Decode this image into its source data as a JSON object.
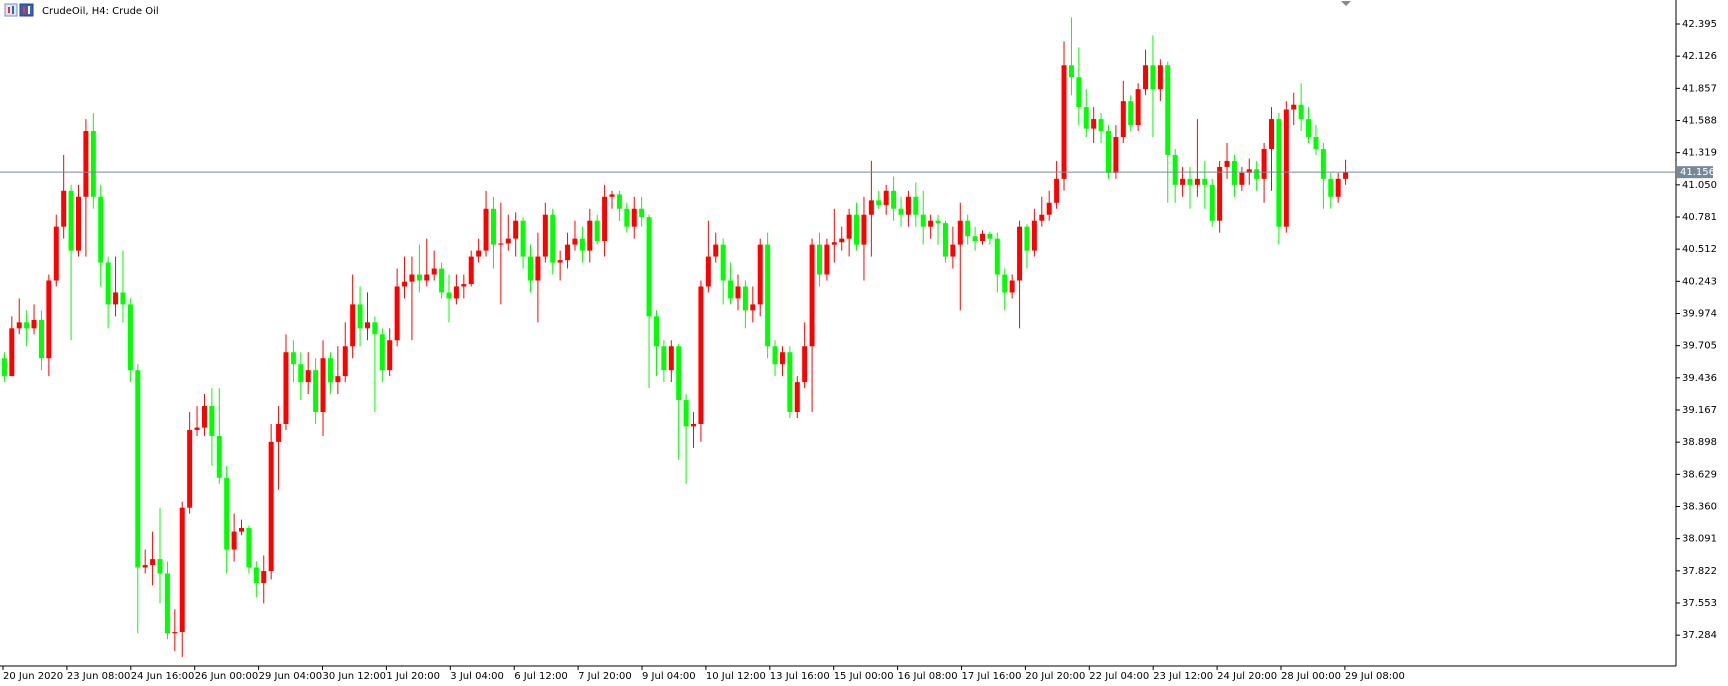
{
  "chart_data": {
    "type": "candlestick",
    "title": "CrudeOil, H4:  Crude Oil",
    "bull_color": "#ff0000",
    "bear_color": "#00ff00",
    "price_line_color": "#778899",
    "last_price": 41.156,
    "ylim": [
      37.026,
      42.579
    ],
    "yticks": [
      42.395,
      42.126,
      41.857,
      41.588,
      41.319,
      {
        "value": 41.05,
        "label": "41.050"
      },
      40.781,
      40.512,
      40.243,
      39.974,
      39.705,
      39.436,
      39.167,
      38.898,
      38.629,
      {
        "value": 38.36,
        "label": "38.360"
      },
      38.091,
      37.822,
      37.553,
      37.284
    ],
    "xlabels": [
      "20 Jun 2020",
      "23 Jun 08:00",
      "24 Jun 16:00",
      "26 Jun 00:00",
      "29 Jun 04:00",
      "30 Jun 12:00",
      "1 Jul 20:00",
      "3 Jul 04:00",
      "6 Jul 12:00",
      "7 Jul 20:00",
      "9 Jul 04:00",
      "10 Jul 12:00",
      "13 Jul 16:00",
      "15 Jul 00:00",
      "16 Jul 08:00",
      "17 Jul 16:00",
      "20 Jul 20:00",
      "22 Jul 04:00",
      "23 Jul 12:00",
      "24 Jul 20:00",
      "28 Jul 00:00",
      "29 Jul 08:00"
    ],
    "ohlc": [
      [
        39.6,
        39.65,
        39.4,
        39.45
      ],
      [
        39.45,
        39.95,
        39.45,
        39.85
      ],
      [
        39.85,
        40.1,
        39.8,
        39.9
      ],
      [
        39.9,
        40.0,
        39.7,
        39.85
      ],
      [
        39.85,
        40.05,
        39.8,
        39.92
      ],
      [
        39.92,
        40.0,
        39.5,
        39.6
      ],
      [
        39.6,
        40.3,
        39.45,
        40.25
      ],
      [
        40.25,
        40.8,
        40.2,
        40.7
      ],
      [
        40.7,
        41.3,
        40.6,
        41.0
      ],
      [
        41.0,
        41.05,
        39.75,
        40.5
      ],
      [
        40.5,
        41.05,
        40.45,
        40.95
      ],
      [
        40.95,
        41.6,
        40.45,
        41.5
      ],
      [
        41.5,
        41.65,
        40.85,
        40.95
      ],
      [
        40.95,
        41.05,
        40.2,
        40.4
      ],
      [
        40.4,
        40.45,
        39.85,
        40.05
      ],
      [
        40.05,
        40.45,
        39.95,
        40.15
      ],
      [
        40.15,
        40.5,
        39.9,
        40.05
      ],
      [
        40.05,
        40.1,
        39.4,
        39.5
      ],
      [
        39.5,
        39.55,
        37.3,
        37.85
      ],
      [
        37.85,
        38.0,
        37.8,
        37.87
      ],
      [
        37.87,
        38.15,
        37.7,
        37.92
      ],
      [
        37.92,
        38.35,
        37.55,
        37.8
      ],
      [
        37.8,
        37.9,
        37.25,
        37.3
      ],
      [
        37.3,
        37.5,
        37.15,
        37.31
      ],
      [
        37.31,
        38.4,
        37.1,
        38.35
      ],
      [
        38.35,
        39.15,
        38.3,
        39.0
      ],
      [
        39.0,
        39.2,
        38.95,
        39.02
      ],
      [
        39.02,
        39.3,
        38.95,
        39.2
      ],
      [
        39.2,
        39.35,
        38.7,
        38.95
      ],
      [
        38.95,
        39.35,
        38.55,
        38.6
      ],
      [
        38.6,
        38.7,
        37.8,
        38.0
      ],
      [
        38.0,
        38.3,
        37.9,
        38.15
      ],
      [
        38.15,
        38.25,
        38.12,
        38.18
      ],
      [
        38.18,
        38.2,
        37.8,
        37.85
      ],
      [
        37.85,
        37.9,
        37.6,
        37.72
      ],
      [
        37.72,
        37.95,
        37.55,
        37.82
      ],
      [
        37.82,
        39.05,
        37.75,
        38.9
      ],
      [
        38.9,
        39.2,
        38.5,
        39.05
      ],
      [
        39.05,
        39.8,
        39.0,
        39.65
      ],
      [
        39.65,
        39.75,
        39.4,
        39.55
      ],
      [
        39.55,
        39.65,
        39.25,
        39.4
      ],
      [
        39.4,
        39.65,
        39.3,
        39.5
      ],
      [
        39.5,
        39.6,
        39.05,
        39.15
      ],
      [
        39.15,
        39.75,
        38.95,
        39.6
      ],
      [
        39.6,
        39.65,
        39.3,
        39.4
      ],
      [
        39.4,
        39.7,
        39.3,
        39.45
      ],
      [
        39.45,
        39.9,
        39.4,
        39.7
      ],
      [
        39.7,
        40.3,
        39.6,
        40.05
      ],
      [
        40.05,
        40.2,
        39.7,
        39.85
      ],
      [
        39.85,
        40.15,
        39.75,
        39.9
      ],
      [
        39.9,
        39.95,
        39.15,
        39.8
      ],
      [
        39.8,
        39.85,
        39.4,
        39.5
      ],
      [
        39.5,
        39.85,
        39.45,
        39.75
      ],
      [
        39.75,
        40.35,
        39.7,
        40.2
      ],
      [
        40.2,
        40.45,
        40.1,
        40.24
      ],
      [
        40.24,
        40.45,
        39.75,
        40.3
      ],
      [
        40.3,
        40.55,
        40.15,
        40.25
      ],
      [
        40.25,
        40.6,
        40.2,
        40.3
      ],
      [
        40.3,
        40.5,
        40.25,
        40.35
      ],
      [
        40.35,
        40.4,
        40.1,
        40.15
      ],
      [
        40.15,
        40.3,
        39.9,
        40.1
      ],
      [
        40.1,
        40.3,
        40.05,
        40.2
      ],
      [
        40.2,
        40.3,
        40.1,
        40.22
      ],
      [
        40.22,
        40.5,
        40.2,
        40.45
      ],
      [
        40.45,
        40.6,
        40.4,
        40.5
      ],
      [
        40.5,
        41.0,
        40.45,
        40.85
      ],
      [
        40.85,
        40.95,
        40.35,
        40.55
      ],
      [
        40.55,
        40.9,
        40.05,
        40.56
      ],
      [
        40.56,
        40.8,
        40.5,
        40.6
      ],
      [
        40.6,
        40.82,
        40.45,
        40.75
      ],
      [
        40.75,
        40.78,
        40.35,
        40.45
      ],
      [
        40.45,
        40.55,
        40.15,
        40.25
      ],
      [
        40.25,
        40.65,
        39.9,
        40.45
      ],
      [
        40.45,
        40.9,
        40.4,
        40.8
      ],
      [
        40.8,
        40.85,
        40.3,
        40.4
      ],
      [
        40.4,
        40.5,
        40.25,
        40.42
      ],
      [
        40.42,
        40.65,
        40.35,
        40.55
      ],
      [
        40.55,
        40.75,
        40.5,
        40.6
      ],
      [
        40.6,
        40.7,
        40.4,
        40.5
      ],
      [
        40.5,
        40.85,
        40.4,
        40.75
      ],
      [
        40.75,
        40.8,
        40.55,
        40.58
      ],
      [
        40.58,
        41.05,
        40.45,
        40.95
      ],
      [
        40.95,
        41.0,
        40.85,
        40.97
      ],
      [
        40.97,
        41.0,
        40.75,
        40.85
      ],
      [
        40.85,
        40.9,
        40.65,
        40.7
      ],
      [
        40.7,
        40.95,
        40.6,
        40.85
      ],
      [
        40.85,
        40.95,
        40.7,
        40.78
      ],
      [
        40.78,
        40.8,
        39.35,
        39.95
      ],
      [
        39.95,
        40.0,
        39.45,
        39.7
      ],
      [
        39.7,
        39.75,
        39.4,
        39.5
      ],
      [
        39.5,
        39.75,
        39.4,
        39.7
      ],
      [
        39.7,
        39.72,
        38.75,
        39.25
      ],
      [
        39.25,
        39.3,
        38.55,
        39.03
      ],
      [
        39.03,
        39.15,
        38.85,
        39.05
      ],
      [
        39.05,
        40.25,
        38.9,
        40.2
      ],
      [
        40.2,
        40.75,
        40.15,
        40.45
      ],
      [
        40.45,
        40.65,
        40.4,
        40.55
      ],
      [
        40.55,
        40.6,
        40.05,
        40.25
      ],
      [
        40.25,
        40.4,
        40.05,
        40.1
      ],
      [
        40.1,
        40.3,
        40.0,
        40.2
      ],
      [
        40.2,
        40.25,
        39.85,
        40.0
      ],
      [
        40.0,
        40.2,
        39.9,
        40.05
      ],
      [
        40.05,
        40.6,
        39.95,
        40.55
      ],
      [
        40.55,
        40.65,
        39.6,
        39.7
      ],
      [
        39.7,
        39.75,
        39.45,
        39.55
      ],
      [
        39.55,
        39.7,
        39.45,
        39.65
      ],
      [
        39.65,
        39.7,
        39.1,
        39.15
      ],
      [
        39.15,
        39.45,
        39.1,
        39.4
      ],
      [
        39.4,
        39.9,
        39.35,
        39.7
      ],
      [
        39.7,
        40.6,
        39.15,
        40.55
      ],
      [
        40.55,
        40.65,
        40.2,
        40.3
      ],
      [
        40.3,
        40.6,
        40.25,
        40.55
      ],
      [
        40.55,
        40.85,
        40.4,
        40.57
      ],
      [
        40.57,
        40.7,
        40.5,
        40.6
      ],
      [
        40.6,
        40.85,
        40.45,
        40.8
      ],
      [
        40.8,
        40.9,
        40.5,
        40.55
      ],
      [
        40.55,
        40.95,
        40.25,
        40.8
      ],
      [
        40.8,
        41.25,
        40.45,
        40.92
      ],
      [
        40.92,
        41.0,
        40.85,
        40.88
      ],
      [
        40.88,
        41.05,
        40.8,
        41.0
      ],
      [
        41.0,
        41.12,
        40.75,
        40.85
      ],
      [
        40.85,
        40.95,
        40.7,
        40.8
      ],
      [
        40.8,
        41.0,
        40.7,
        40.95
      ],
      [
        40.95,
        41.07,
        40.7,
        40.8
      ],
      [
        40.8,
        41.0,
        40.55,
        40.7
      ],
      [
        40.7,
        40.8,
        40.6,
        40.75
      ],
      [
        40.75,
        40.8,
        40.55,
        40.73
      ],
      [
        40.73,
        40.75,
        40.4,
        40.45
      ],
      [
        40.45,
        40.7,
        40.35,
        40.55
      ],
      [
        40.55,
        40.9,
        40.0,
        40.75
      ],
      [
        40.75,
        40.8,
        40.55,
        40.62
      ],
      [
        40.62,
        40.7,
        40.5,
        40.58
      ],
      [
        40.58,
        40.67,
        40.55,
        40.64
      ],
      [
        40.64,
        40.66,
        40.55,
        40.6
      ],
      [
        40.6,
        40.65,
        40.15,
        40.3
      ],
      [
        40.3,
        40.35,
        40.0,
        40.15
      ],
      [
        40.15,
        40.3,
        40.1,
        40.25
      ],
      [
        40.25,
        40.75,
        39.85,
        40.7
      ],
      [
        40.7,
        40.72,
        40.35,
        40.5
      ],
      [
        40.5,
        40.85,
        40.45,
        40.75
      ],
      [
        40.75,
        40.95,
        40.7,
        40.8
      ],
      [
        40.8,
        41.0,
        40.75,
        40.9
      ],
      [
        40.9,
        41.25,
        40.85,
        41.1
      ],
      [
        41.1,
        42.25,
        41.0,
        42.05
      ],
      [
        42.05,
        42.45,
        41.8,
        41.95
      ],
      [
        41.95,
        42.2,
        41.55,
        41.7
      ],
      [
        41.7,
        41.85,
        41.45,
        41.52
      ],
      [
        41.52,
        41.7,
        41.4,
        41.6
      ],
      [
        41.6,
        41.65,
        41.4,
        41.5
      ],
      [
        41.5,
        41.55,
        41.1,
        41.15
      ],
      [
        41.15,
        41.55,
        41.1,
        41.45
      ],
      [
        41.45,
        41.92,
        41.4,
        41.75
      ],
      [
        41.75,
        41.8,
        41.5,
        41.55
      ],
      [
        41.55,
        41.9,
        41.5,
        41.85
      ],
      [
        41.85,
        42.18,
        41.8,
        42.05
      ],
      [
        42.05,
        42.3,
        41.45,
        41.85
      ],
      [
        41.85,
        42.1,
        41.75,
        42.05
      ],
      [
        42.05,
        42.08,
        40.9,
        41.3
      ],
      [
        41.3,
        41.35,
        40.9,
        41.05
      ],
      [
        41.05,
        41.2,
        40.95,
        41.1
      ],
      [
        41.1,
        41.2,
        40.85,
        41.05
      ],
      [
        41.05,
        41.6,
        40.95,
        41.1
      ],
      [
        41.1,
        41.25,
        40.85,
        41.05
      ],
      [
        41.05,
        41.1,
        40.7,
        40.75
      ],
      [
        40.75,
        41.25,
        40.65,
        41.2
      ],
      [
        41.2,
        41.4,
        41.1,
        41.25
      ],
      [
        41.25,
        41.3,
        40.95,
        41.05
      ],
      [
        41.05,
        41.2,
        41.0,
        41.15
      ],
      [
        41.15,
        41.27,
        41.05,
        41.18
      ],
      [
        41.18,
        41.25,
        41.0,
        41.1
      ],
      [
        41.1,
        41.4,
        40.9,
        41.35
      ],
      [
        41.35,
        41.7,
        41.0,
        41.6
      ],
      [
        41.6,
        41.65,
        40.55,
        40.7
      ],
      [
        40.7,
        41.75,
        40.65,
        41.68
      ],
      [
        41.68,
        41.82,
        41.55,
        41.72
      ],
      [
        41.72,
        41.9,
        41.5,
        41.6
      ],
      [
        41.6,
        41.7,
        41.4,
        41.45
      ],
      [
        41.45,
        41.55,
        41.3,
        41.35
      ],
      [
        41.35,
        41.4,
        40.85,
        41.1
      ],
      [
        41.1,
        41.15,
        40.85,
        40.95
      ],
      [
        40.95,
        41.15,
        40.9,
        41.1
      ],
      [
        41.1,
        41.26,
        41.05,
        41.156
      ]
    ]
  }
}
